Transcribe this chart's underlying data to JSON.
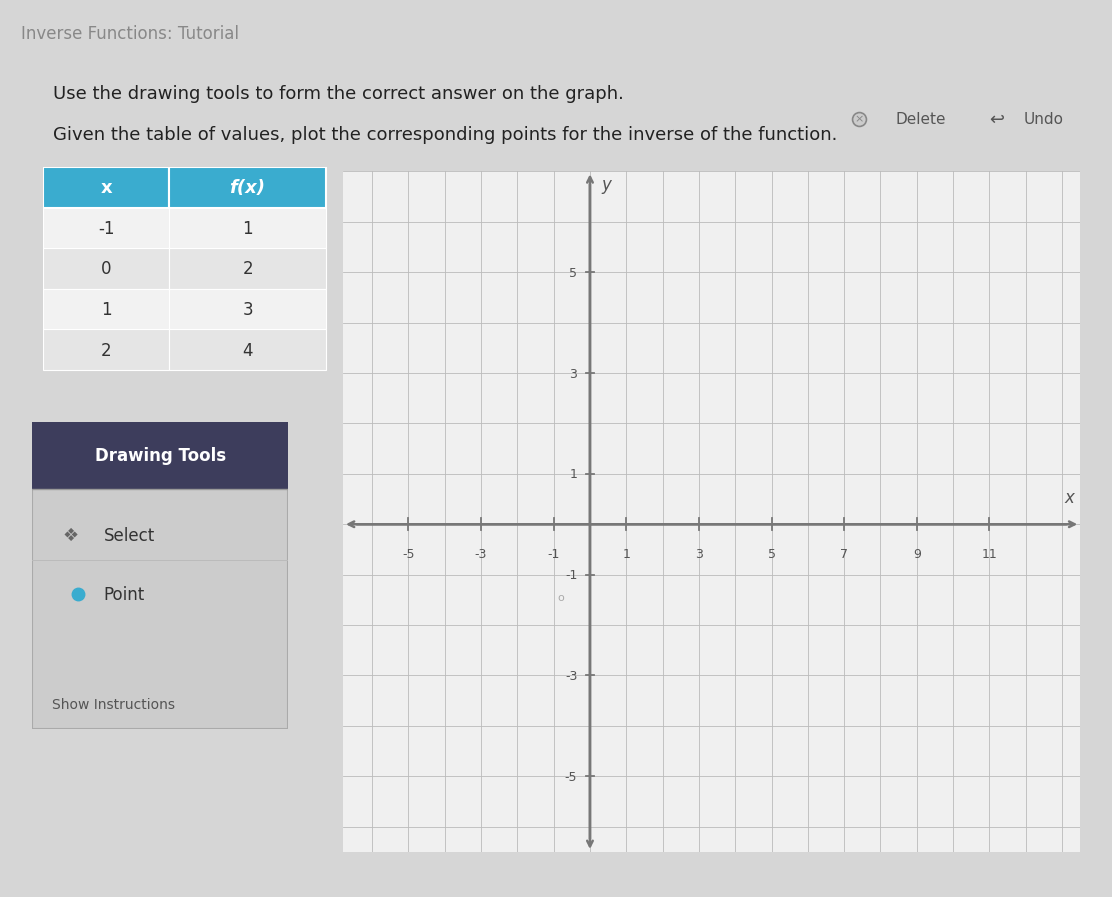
{
  "page_title": "Inverse Functions: Tutorial",
  "title_line1": "Use the drawing tools to form the correct answer on the graph.",
  "title_line2": "Given the table of values, plot the corresponding points for the inverse of the function.",
  "table_header": [
    "x",
    "f(x)"
  ],
  "table_data": [
    [
      -1,
      1
    ],
    [
      0,
      2
    ],
    [
      1,
      3
    ],
    [
      2,
      4
    ]
  ],
  "table_header_bg": "#3aaccf",
  "table_row_bg_light": "#f2f2f2",
  "table_row_bg_dark": "#e5e5e5",
  "drawing_tools_label": "Drawing Tools",
  "tool1": "Select",
  "tool2": "Point",
  "show_instructions": "Show Instructions",
  "delete_label": "Delete",
  "undo_label": "Undo",
  "xaxis_label": "x",
  "yaxis_label": "y",
  "x_ticks": [
    -5,
    -3,
    -1,
    1,
    3,
    5,
    7,
    9,
    11
  ],
  "y_ticks": [
    -5,
    -3,
    -1,
    1,
    3,
    5
  ],
  "xlim": [
    -6.8,
    13.5
  ],
  "ylim": [
    -6.5,
    7.0
  ],
  "grid_color": "#bbbbbb",
  "axis_color": "#777777",
  "page_bg": "#d6d6d6",
  "content_bg": "#e8e8e8",
  "canvas_bg": "#f0f0f0",
  "tools_panel_header_bg": "#3d3d5c",
  "tools_panel_bg": "#cccccc",
  "tools_panel_border": "#aaaaaa",
  "point_color": "#3aaccf",
  "point_size": 8
}
